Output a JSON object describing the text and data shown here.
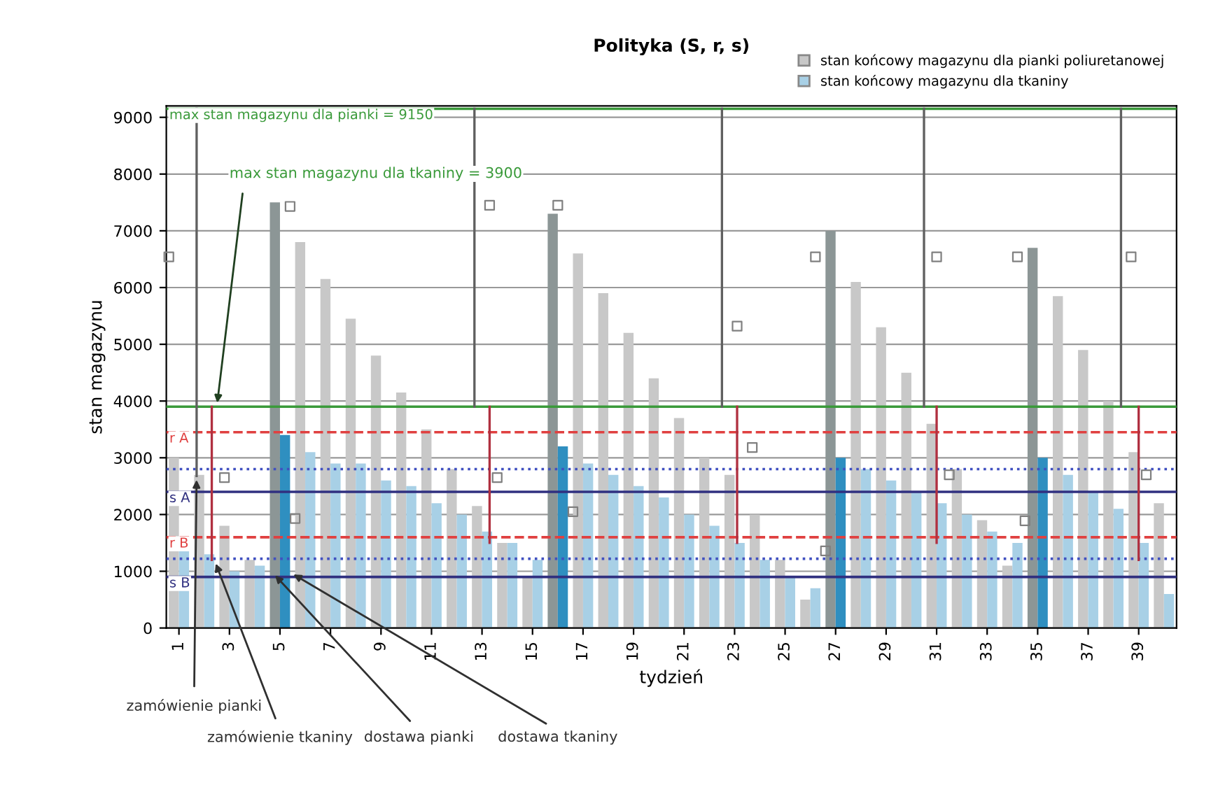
{
  "chart_data": {
    "type": "bar",
    "title": "Polityka (S, r, s)",
    "xlabel": "tydzień",
    "ylabel": "stan magazynu",
    "x": [
      1,
      2,
      3,
      4,
      5,
      6,
      7,
      8,
      9,
      10,
      11,
      12,
      13,
      14,
      15,
      16,
      17,
      18,
      19,
      20,
      21,
      22,
      23,
      24,
      25,
      26,
      27,
      28,
      29,
      30,
      31,
      32,
      33,
      34,
      35,
      36,
      37,
      38,
      39,
      40
    ],
    "xlim": [
      0.5,
      40.5
    ],
    "xticks": [
      1,
      3,
      5,
      7,
      9,
      11,
      13,
      15,
      17,
      19,
      21,
      23,
      25,
      27,
      29,
      31,
      33,
      35,
      37,
      39
    ],
    "ylim": [
      0,
      9200
    ],
    "yticks": [
      0,
      1000,
      2000,
      3000,
      4000,
      5000,
      6000,
      7000,
      8000,
      9000
    ],
    "grid": "y",
    "legend": "top right",
    "series": [
      {
        "name": "stan końcowy magazynu dla pianki poliuretanowej",
        "color": "#c8c8c8",
        "colors": [
          "#c8c8c8",
          "#c8c8c8",
          "#c8c8c8",
          "#c8c8c8",
          "#8c9696",
          "#c8c8c8",
          "#c8c8c8",
          "#c8c8c8",
          "#c8c8c8",
          "#c8c8c8",
          "#c8c8c8",
          "#c8c8c8",
          "#c8c8c8",
          "#c8c8c8",
          "#c8c8c8",
          "#8c9696",
          "#c8c8c8",
          "#c8c8c8",
          "#c8c8c8",
          "#c8c8c8",
          "#c8c8c8",
          "#c8c8c8",
          "#c8c8c8",
          "#c8c8c8",
          "#c8c8c8",
          "#c8c8c8",
          "#8c9696",
          "#c8c8c8",
          "#c8c8c8",
          "#c8c8c8",
          "#c8c8c8",
          "#c8c8c8",
          "#c8c8c8",
          "#c8c8c8",
          "#8c9696",
          "#c8c8c8",
          "#c8c8c8",
          "#c8c8c8",
          "#c8c8c8",
          "#c8c8c8"
        ],
        "values": [
          3000,
          2700,
          1800,
          1200,
          7500,
          6800,
          6150,
          5450,
          4800,
          4150,
          3500,
          2800,
          2150,
          1500,
          900,
          7300,
          6600,
          5900,
          5200,
          4400,
          3700,
          3000,
          2700,
          2000,
          1200,
          500,
          7000,
          6100,
          5300,
          4500,
          3600,
          2800,
          1900,
          1100,
          6700,
          5850,
          4900,
          4000,
          3100,
          2200
        ]
      },
      {
        "name": "stan końcowy magazynu dla tkaniny",
        "color": "#a8d0e6",
        "colors": [
          "#a8d0e6",
          "#a8d0e6",
          "#a8d0e6",
          "#a8d0e6",
          "#2f8fc0",
          "#a8d0e6",
          "#a8d0e6",
          "#a8d0e6",
          "#a8d0e6",
          "#a8d0e6",
          "#a8d0e6",
          "#a8d0e6",
          "#a8d0e6",
          "#a8d0e6",
          "#a8d0e6",
          "#2f8fc0",
          "#a8d0e6",
          "#a8d0e6",
          "#a8d0e6",
          "#a8d0e6",
          "#a8d0e6",
          "#a8d0e6",
          "#a8d0e6",
          "#a8d0e6",
          "#a8d0e6",
          "#a8d0e6",
          "#2f8fc0",
          "#a8d0e6",
          "#a8d0e6",
          "#a8d0e6",
          "#a8d0e6",
          "#a8d0e6",
          "#a8d0e6",
          "#a8d0e6",
          "#2f8fc0",
          "#a8d0e6",
          "#a8d0e6",
          "#a8d0e6",
          "#a8d0e6",
          "#a8d0e6"
        ],
        "values": [
          1400,
          1300,
          1000,
          1100,
          3400,
          3100,
          2900,
          2900,
          2600,
          2500,
          2200,
          2000,
          1700,
          1500,
          1200,
          3200,
          2900,
          2700,
          2500,
          2300,
          2000,
          1800,
          1500,
          1200,
          900,
          700,
          3000,
          2800,
          2600,
          2400,
          2200,
          2000,
          1700,
          1500,
          3000,
          2700,
          2400,
          2100,
          1500,
          600
        ]
      },
      {
        "type": "scatter",
        "marker": "square",
        "color": "#808080",
        "x": [
          0.6,
          2.8,
          5.4,
          5.6,
          13.3,
          13.6,
          16.0,
          16.6,
          23.1,
          23.7,
          26.2,
          26.6,
          31.0,
          31.5,
          34.2,
          34.5,
          38.7,
          39.3
        ],
        "values": [
          6540,
          2650,
          7430,
          1930,
          7450,
          2650,
          7450,
          2050,
          5320,
          3180,
          6540,
          1360,
          6540,
          2700,
          6540,
          1890,
          6540,
          2700
        ]
      },
      {
        "type": "line",
        "color": "#606060",
        "x": [
          1.7,
          1.7
        ],
        "values": [
          9150,
          2680
        ]
      },
      {
        "type": "line",
        "color": "#606060",
        "x": [
          12.7,
          12.7
        ],
        "values": [
          9150,
          3900
        ]
      },
      {
        "type": "line",
        "color": "#606060",
        "x": [
          22.5,
          22.5
        ],
        "values": [
          9150,
          3900
        ]
      },
      {
        "type": "line",
        "color": "#606060",
        "x": [
          30.5,
          30.5
        ],
        "values": [
          9150,
          3900
        ]
      },
      {
        "type": "line",
        "color": "#606060",
        "x": [
          38.3,
          38.3
        ],
        "values": [
          9150,
          3900
        ]
      },
      {
        "type": "line",
        "color": "#b03040",
        "x": [
          2.3,
          2.3
        ],
        "values": [
          3900,
          1200
        ]
      },
      {
        "type": "line",
        "color": "#b03040",
        "x": [
          13.3,
          13.3
        ],
        "values": [
          3900,
          1500
        ]
      },
      {
        "type": "line",
        "color": "#b03040",
        "x": [
          23.1,
          23.1
        ],
        "values": [
          3900,
          1500
        ]
      },
      {
        "type": "line",
        "color": "#b03040",
        "x": [
          31.0,
          31.0
        ],
        "values": [
          3900,
          1500
        ]
      },
      {
        "type": "line",
        "color": "#b03040",
        "x": [
          39.0,
          39.0
        ],
        "values": [
          3900,
          1200
        ]
      }
    ],
    "ref_lines": [
      {
        "axis": "y",
        "value": 9150,
        "label": "max stan magazynu dla pianki = 9150",
        "color": "#3a9a3a",
        "line_style": "solid"
      },
      {
        "axis": "y",
        "value": 3900,
        "color": "#3a9a3a",
        "line_style": "solid"
      },
      {
        "axis": "y",
        "value": 3450,
        "label": "r A",
        "color": "#e04040",
        "line_style": "dashed"
      },
      {
        "axis": "y",
        "value": 2800,
        "color": "#4050c0",
        "line_style": "dotted"
      },
      {
        "axis": "y",
        "value": 2400,
        "label": "s A",
        "color": "#303080",
        "line_style": "solid"
      },
      {
        "axis": "y",
        "value": 1600,
        "label": "r B",
        "color": "#e04040",
        "line_style": "dashed"
      },
      {
        "axis": "y",
        "value": 1220,
        "color": "#4050c0",
        "line_style": "dotted"
      },
      {
        "axis": "y",
        "value": 900,
        "label": "s B",
        "color": "#303080",
        "line_style": "solid"
      }
    ],
    "annotations": [
      {
        "text": "max stan magazynu dla tkaniny = 3900",
        "x": 2.5,
        "y": 3900
      },
      {
        "text": "zamówienie pianki",
        "x": 1.7,
        "y": 2680
      },
      {
        "text": "zamówienie tkaniny",
        "x": 2.4,
        "y": 1200
      },
      {
        "text": "dostawa pianki",
        "x": 4.7,
        "y": 980
      },
      {
        "text": "dostawa tkaniny",
        "x": 5.4,
        "y": 980
      }
    ]
  }
}
